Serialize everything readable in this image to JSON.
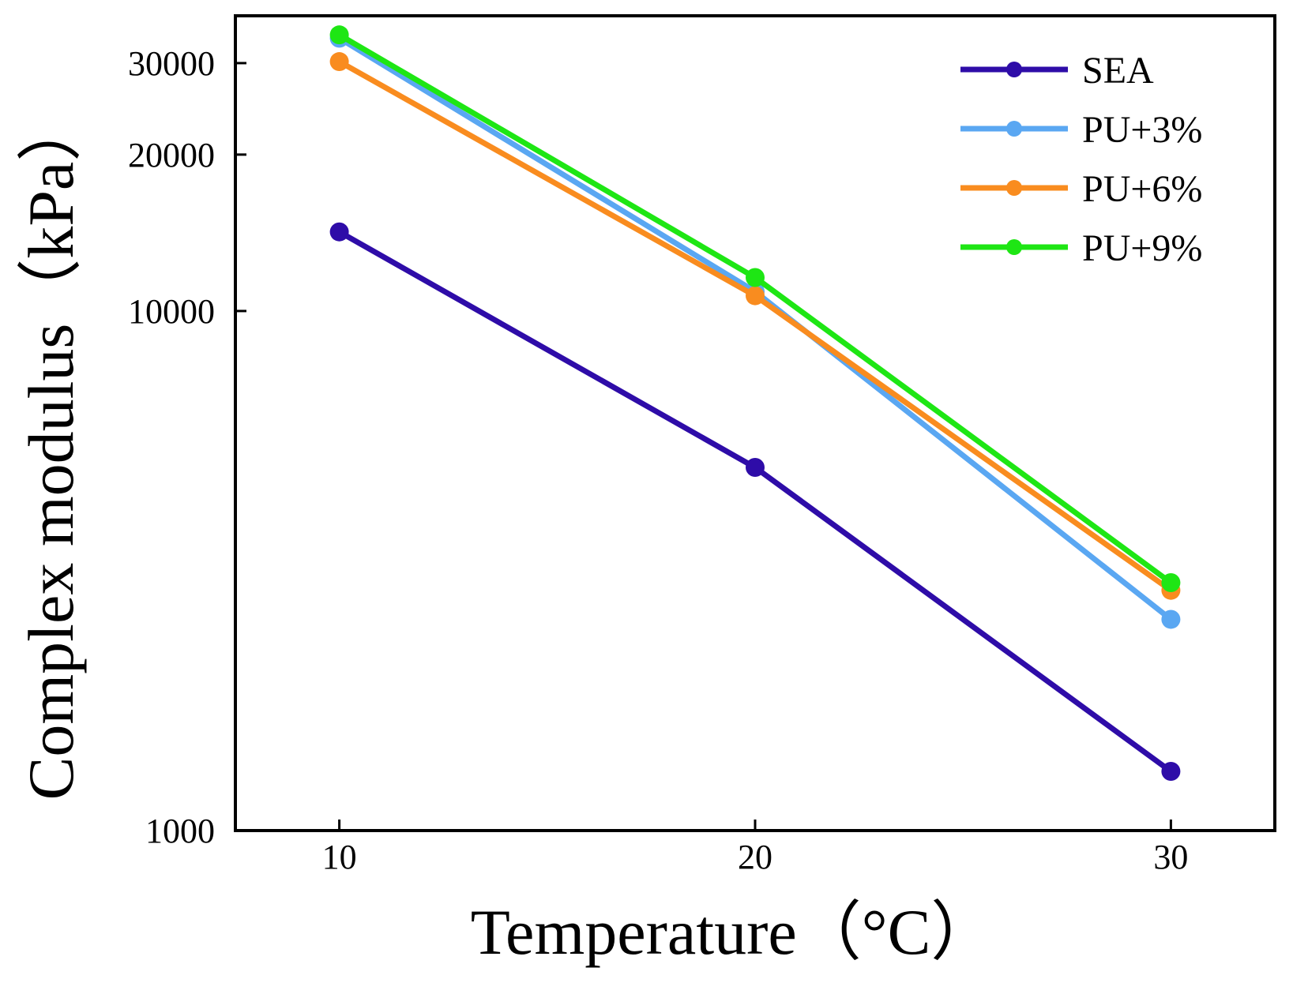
{
  "chart_data": {
    "type": "line",
    "title": "",
    "xlabel": "Temperature（°C）",
    "ylabel": "Complex modulus（kPa）",
    "yscale": "log",
    "xlim": [
      7.5,
      32.5
    ],
    "ylim": [
      1000,
      37000
    ],
    "xticks": [
      10,
      20,
      30
    ],
    "xtick_labels": [
      "10",
      "20",
      "30"
    ],
    "yticks": [
      1000,
      10000,
      20000,
      30000
    ],
    "ytick_labels": [
      "1000",
      "10000",
      "20000",
      "30000"
    ],
    "legend_position": "top-right",
    "x": [
      10,
      20,
      30
    ],
    "series": [
      {
        "name": "SEA",
        "color": "#2e0ca8",
        "values": [
          14200,
          5000,
          1300
        ]
      },
      {
        "name": "PU+3%",
        "color": "#5aa7f2",
        "values": [
          33500,
          10900,
          2550
        ]
      },
      {
        "name": "PU+6%",
        "color": "#f98c1f",
        "values": [
          30200,
          10700,
          2900
        ]
      },
      {
        "name": "PU+9%",
        "color": "#1ee614",
        "values": [
          34000,
          11600,
          3000
        ]
      }
    ]
  }
}
